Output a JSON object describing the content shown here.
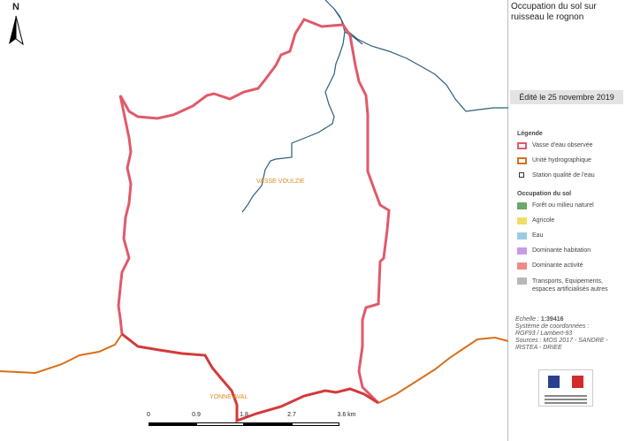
{
  "title": "Occupation du sol sur ruisseau le rognon",
  "date": "Édité le 25 novembre 2019",
  "north": "N",
  "places": [
    "VASSE VOULZIE",
    "YONNE AVAL"
  ],
  "scale": {
    "labels": [
      "0",
      "0.9",
      "1.8",
      "2.7",
      "3.6 km"
    ]
  },
  "legend": {
    "heading": "Légende",
    "items": [
      {
        "label": "Vasse d'eau observée",
        "color": "#e05a6a"
      },
      {
        "label": "Unité hydrographique",
        "color": "#d7701c"
      },
      {
        "label": "Station qualité de l'eau",
        "color": "#333333"
      }
    ],
    "land_heading": "Occupation du sol",
    "land": [
      {
        "label": "Forêt ou milieu naturel",
        "color": "#6aa86a"
      },
      {
        "label": "Agricole",
        "color": "#f0dc6a"
      },
      {
        "label": "Eau",
        "color": "#9ccbe6"
      },
      {
        "label": "Dominante habitation",
        "color": "#c79ae8"
      },
      {
        "label": "Dominante activité",
        "color": "#ef8a86"
      },
      {
        "label": "Transports, Equipements, espaces artificialisés autres",
        "color": "#b8b8b8"
      }
    ]
  },
  "meta": {
    "scale_label": "Echelle :",
    "scale_value": "1:39416",
    "crs_label": "Système de coordonnées :",
    "crs_value": "RGF93 / Lambert-93",
    "sources": "Sources : MOS 2017 - SANDRE - IRSTEA - DRIEE"
  },
  "colors": {
    "river": "#2c5f7a",
    "watershed": "#e05a6a",
    "unit_boundary": "#d7701c",
    "boundary_join": "#d43a3a"
  }
}
